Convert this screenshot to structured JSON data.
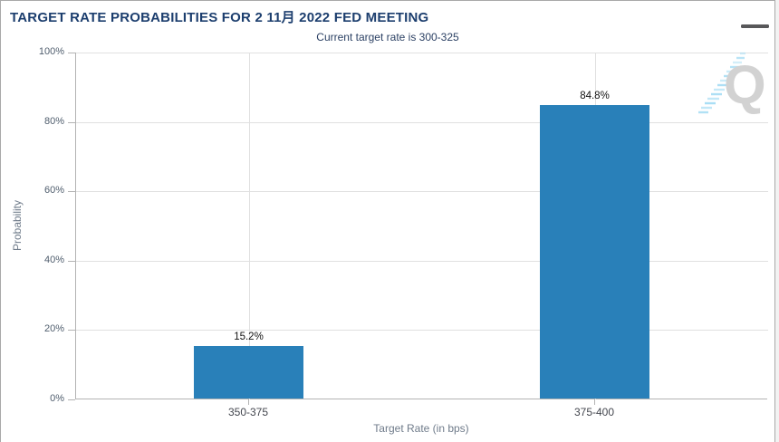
{
  "header": {
    "title": "TARGET RATE PROBABILITIES FOR 2 11月 2022 FED MEETING",
    "menu_icon": "hamburger-menu"
  },
  "watermark": {
    "letter": "Q",
    "icon": "quikstrike-q-logo"
  },
  "colors": {
    "bar": "#2980b9",
    "title": "#1c3e6e",
    "axis_line": "#b3b3b3",
    "gridline": "#e0e0e0",
    "watermark_blue": "#a9def5",
    "watermark_gray": "#d2d2d2"
  },
  "chart_data": {
    "type": "bar",
    "title": "TARGET RATE PROBABILITIES FOR 2 11月 2022 FED MEETING",
    "subtitle": "Current target rate is 300-325",
    "categories": [
      "350-375",
      "375-400"
    ],
    "values": [
      15.2,
      84.8
    ],
    "value_labels": [
      "15.2%",
      "84.8%"
    ],
    "xlabel": "Target Rate (in bps)",
    "ylabel": "Probability",
    "ylim": [
      0,
      100
    ],
    "yticks": [
      "0%",
      "20%",
      "40%",
      "60%",
      "80%",
      "100%"
    ],
    "grid": true,
    "legend": "none",
    "bar_color": "#2980b9"
  }
}
